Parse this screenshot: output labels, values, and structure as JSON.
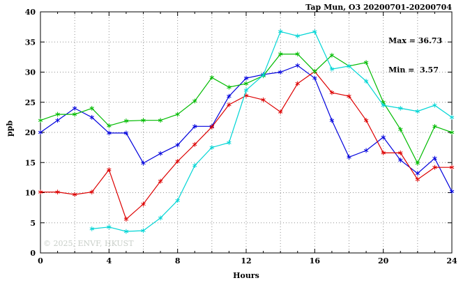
{
  "chart_data": {
    "type": "line",
    "title": "Tap Mun, O3 20200701-20200704",
    "xlabel": "Hours",
    "ylabel": "ppb",
    "xlim": [
      0,
      24
    ],
    "ylim": [
      0,
      40
    ],
    "xticks": [
      0,
      4,
      8,
      12,
      16,
      20,
      24
    ],
    "yticks": [
      0,
      5,
      10,
      15,
      20,
      25,
      30,
      35,
      40
    ],
    "grid": true,
    "xgrid_step": 2,
    "legend_position": "none",
    "annotation": {
      "max_label": "Max = 36.73",
      "min_label": "Min =  3.57"
    },
    "watermark": "© 2025, ENVF, HKUST",
    "series": [
      {
        "name": "blue",
        "color": "#0000dd",
        "x": [
          0,
          1,
          2,
          3,
          4,
          5,
          6,
          7,
          8,
          9,
          10,
          11,
          12,
          13,
          14,
          15,
          16,
          17,
          18,
          19,
          20,
          21,
          22,
          23,
          24
        ],
        "y": [
          20.0,
          22.0,
          24.0,
          22.5,
          19.9,
          19.9,
          14.9,
          16.5,
          17.9,
          21.0,
          21.0,
          26.0,
          29.0,
          29.6,
          30.0,
          31.1,
          29.0,
          22.0,
          15.9,
          17.0,
          19.2,
          15.4,
          13.2,
          15.7,
          10.2
        ]
      },
      {
        "name": "red",
        "color": "#dd0000",
        "x": [
          0,
          1,
          2,
          3,
          4,
          5,
          6,
          7,
          8,
          9,
          10,
          11,
          12,
          13,
          14,
          15,
          16,
          17,
          18,
          19,
          20,
          21,
          22,
          23,
          24
        ],
        "y": [
          10.1,
          10.1,
          9.7,
          10.1,
          13.8,
          5.6,
          8.1,
          11.9,
          15.2,
          18.0,
          20.9,
          24.6,
          26.1,
          25.4,
          23.4,
          28.1,
          30.1,
          26.6,
          26.0,
          22.0,
          16.6,
          16.6,
          12.2,
          14.2,
          14.2
        ]
      },
      {
        "name": "green",
        "color": "#00bb00",
        "x": [
          0,
          1,
          2,
          3,
          4,
          5,
          6,
          7,
          8,
          9,
          10,
          11,
          12,
          13,
          14,
          15,
          16,
          17,
          18,
          19,
          20,
          21,
          22,
          23,
          24
        ],
        "y": [
          22.0,
          23.0,
          23.0,
          24.0,
          21.1,
          21.9,
          22.0,
          22.0,
          23.0,
          25.2,
          29.1,
          27.5,
          28.1,
          29.4,
          33.0,
          33.0,
          30.1,
          32.8,
          31.0,
          31.6,
          25.0,
          20.5,
          14.9,
          21.0,
          20.0
        ]
      },
      {
        "name": "cyan",
        "color": "#00d5d5",
        "x": [
          3,
          4,
          5,
          6,
          7,
          8,
          9,
          10,
          11,
          12,
          13,
          14,
          15,
          16,
          17,
          18,
          19,
          20,
          21,
          22,
          23,
          24
        ],
        "y": [
          4.0,
          4.3,
          3.57,
          3.7,
          5.8,
          8.7,
          14.5,
          17.5,
          18.3,
          27.0,
          29.5,
          36.73,
          36.0,
          36.7,
          30.5,
          31.0,
          28.5,
          24.5,
          24.0,
          23.5,
          24.5,
          22.5
        ]
      }
    ]
  }
}
